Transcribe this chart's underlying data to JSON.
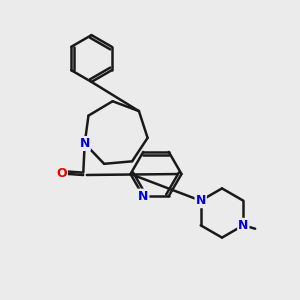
{
  "background_color": "#ebebeb",
  "bond_color": "#1a1a1a",
  "N_color": "#0000ee",
  "O_color": "#ee0000",
  "lw": 1.8,
  "figsize": [
    3.0,
    3.0
  ],
  "dpi": 100,
  "xlim": [
    0,
    10
  ],
  "ylim": [
    0,
    10
  ]
}
